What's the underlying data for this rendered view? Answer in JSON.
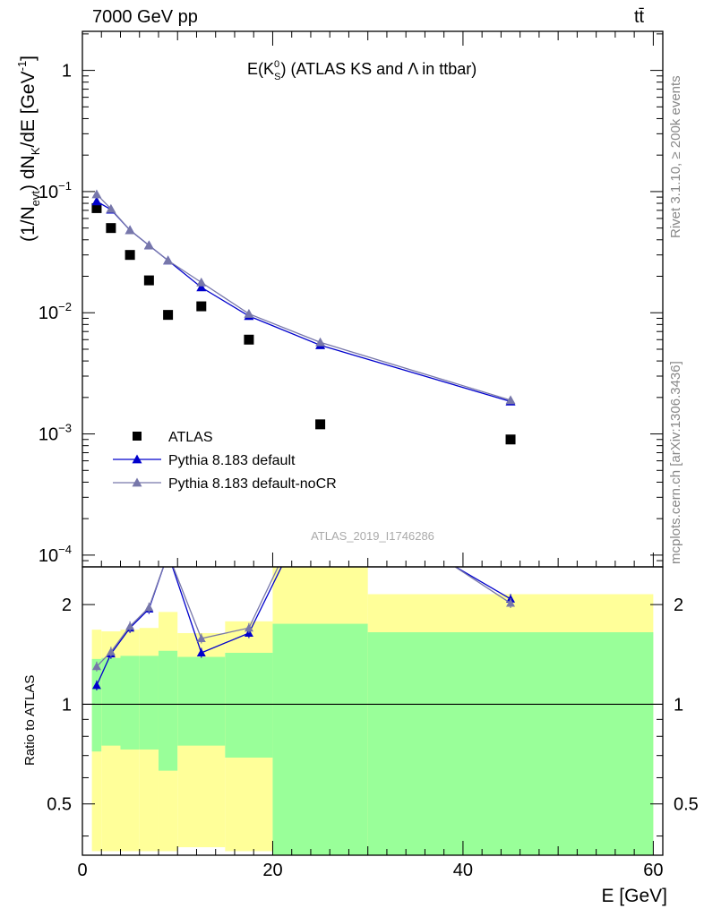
{
  "header": {
    "collision": "7000 GeV pp",
    "process": "tt̄"
  },
  "side_labels": {
    "rivet": "Rivet 3.1.10, ≥ 200k events",
    "mcplots": "mcplots.cern.ch [arXiv:1306.3436]"
  },
  "chart_data": [
    {
      "type": "scatter",
      "title": "E(K_S^0) (ATLAS KS and Λ in ttbar)",
      "title_parts": {
        "prefix": "E(K",
        "sup": "0",
        "sub": "S",
        "suffix": ") (ATLAS KS and Λ in ttbar)"
      },
      "ylabel": "(1/N_evt) dN_K/dE [GeV^-1]",
      "ylabel_parts": {
        "a": "(1/N",
        "sub1": "evt",
        "b": ") dN",
        "sub2": "K",
        "c": "/dE [GeV",
        "sup": "-1",
        "d": "]"
      },
      "yscale": "log",
      "ylim": [
        8e-05,
        2.1
      ],
      "xlim": [
        0,
        61
      ],
      "yticks": [
        {
          "v": 1,
          "label": "1"
        },
        {
          "v": 0.1,
          "mant": "10",
          "exp": "−1"
        },
        {
          "v": 0.01,
          "mant": "10",
          "exp": "−2"
        },
        {
          "v": 0.001,
          "mant": "10",
          "exp": "−3"
        },
        {
          "v": 0.0001,
          "mant": "10",
          "exp": "−4"
        }
      ],
      "watermark": "ATLAS_2019_I1746286",
      "legend": [
        "ATLAS",
        "Pythia 8.183 default",
        "Pythia 8.183 default-noCR"
      ],
      "series": [
        {
          "name": "ATLAS",
          "x": [
            1.5,
            3,
            5,
            7,
            9,
            12.5,
            17.5,
            25,
            45
          ],
          "values": [
            0.073,
            0.05,
            0.03,
            0.0185,
            0.0096,
            0.0113,
            0.006,
            0.0012,
            0.0009
          ],
          "color": "#000000"
        },
        {
          "name": "Pythia 8.183 default",
          "x": [
            1.5,
            3,
            5,
            7,
            9,
            12.5,
            17.5,
            25,
            45
          ],
          "values": [
            0.083,
            0.071,
            0.048,
            0.036,
            0.027,
            0.0162,
            0.0094,
            0.0054,
            0.00185
          ],
          "color": "#0000cc"
        },
        {
          "name": "Pythia 8.183 default-noCR",
          "x": [
            1.5,
            3,
            5,
            7,
            9,
            12.5,
            17.5,
            25,
            45
          ],
          "values": [
            0.095,
            0.072,
            0.048,
            0.036,
            0.027,
            0.0178,
            0.0098,
            0.0057,
            0.0019
          ],
          "color": "#7777aa"
        }
      ]
    },
    {
      "type": "line",
      "title": "",
      "xlabel": "E [GeV]",
      "ylabel": "Ratio to ATLAS",
      "yscale": "log",
      "ylim": [
        0.35,
        2.6
      ],
      "xlim": [
        0,
        61
      ],
      "xticks": [
        0,
        20,
        40,
        60
      ],
      "yticks": [
        0.5,
        1,
        2
      ],
      "bins": [
        [
          1,
          2
        ],
        [
          2,
          4
        ],
        [
          4,
          6
        ],
        [
          6,
          8
        ],
        [
          8,
          10
        ],
        [
          10,
          15
        ],
        [
          15,
          20
        ],
        [
          20,
          30
        ],
        [
          30,
          60
        ]
      ],
      "band_inner": [
        [
          0.72,
          1.37
        ],
        [
          0.75,
          1.38
        ],
        [
          0.73,
          1.4
        ],
        [
          0.73,
          1.4
        ],
        [
          0.63,
          1.45
        ],
        [
          0.75,
          1.39
        ],
        [
          0.69,
          1.43
        ],
        [
          0.35,
          1.75
        ],
        [
          0.35,
          1.65
        ]
      ],
      "band_outer": [
        [
          0.36,
          1.68
        ],
        [
          0.36,
          1.66
        ],
        [
          0.36,
          1.68
        ],
        [
          0.36,
          1.7
        ],
        [
          0.36,
          1.9
        ],
        [
          0.37,
          1.64
        ],
        [
          0.36,
          1.78
        ],
        [
          0.36,
          2.65
        ],
        [
          0.36,
          2.15
        ]
      ],
      "reference": 1,
      "series": [
        {
          "name": "Pythia 8.183 default",
          "x": [
            1.5,
            3,
            5,
            7,
            9,
            12.5,
            17.5,
            25,
            45
          ],
          "values": [
            1.14,
            1.42,
            1.7,
            1.94,
            2.85,
            1.43,
            1.64,
            4.5,
            2.08
          ],
          "color": "#0000cc"
        },
        {
          "name": "Pythia 8.183 default-noCR",
          "x": [
            1.5,
            3,
            5,
            7,
            9,
            12.5,
            17.5,
            25,
            45
          ],
          "values": [
            1.3,
            1.44,
            1.72,
            1.96,
            2.85,
            1.58,
            1.7,
            4.8,
            2.02
          ],
          "color": "#7777aa"
        }
      ],
      "band_colors": {
        "inner": "#99ff99",
        "outer": "#ffff99"
      }
    }
  ]
}
